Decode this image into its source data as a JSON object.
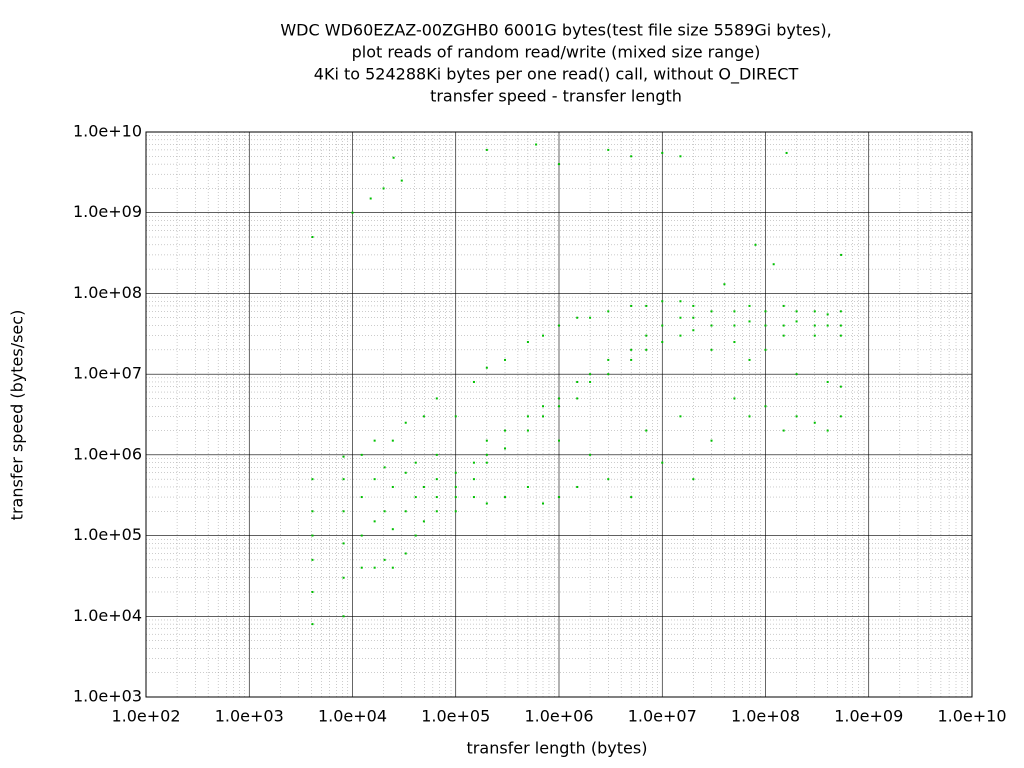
{
  "chart_data": {
    "type": "scatter",
    "title": [
      "WDC WD60EZAZ-00ZGHB0 6001G bytes(test file size 5589Gi bytes),",
      "plot reads of random read/write (mixed size range)",
      "4Ki to 524288Ki bytes per one read() call, without O_DIRECT",
      "transfer speed - transfer length"
    ],
    "x_label": "transfer length (bytes)",
    "y_label": "transfer speed (bytes/sec)",
    "xlog": true,
    "ylog": true,
    "grid": true,
    "minor_grid": true,
    "color": "#00c000",
    "xlim": [
      100,
      10000000000
    ],
    "ylim": [
      1000,
      10000000000
    ],
    "xticks": [
      {
        "value": 100,
        "label": "1.0e+02"
      },
      {
        "value": 1000,
        "label": "1.0e+03"
      },
      {
        "value": 10000,
        "label": "1.0e+04"
      },
      {
        "value": 100000,
        "label": "1.0e+05"
      },
      {
        "value": 1000000,
        "label": "1.0e+06"
      },
      {
        "value": 10000000,
        "label": "1.0e+07"
      },
      {
        "value": 100000000,
        "label": "1.0e+08"
      },
      {
        "value": 1000000000,
        "label": "1.0e+09"
      },
      {
        "value": 10000000000,
        "label": "1.0e+10"
      }
    ],
    "yticks": [
      {
        "value": 1000,
        "label": "1.0e+03"
      },
      {
        "value": 10000,
        "label": "1.0e+04"
      },
      {
        "value": 100000,
        "label": "1.0e+05"
      },
      {
        "value": 1000000,
        "label": "1.0e+06"
      },
      {
        "value": 10000000,
        "label": "1.0e+07"
      },
      {
        "value": 100000000,
        "label": "1.0e+08"
      },
      {
        "value": 1000000000,
        "label": "1.0e+09"
      },
      {
        "value": 10000000000,
        "label": "1.0e+10"
      }
    ],
    "x": [
      4096,
      4096,
      4096,
      4096,
      4096,
      4096,
      8192,
      8192,
      8192,
      8192,
      8192,
      8192,
      12288,
      12288,
      12288,
      12288,
      16384,
      16384,
      16384,
      16384,
      20480,
      20480,
      20480,
      24576,
      24576,
      24576,
      24576,
      32768,
      32768,
      32768,
      32768,
      40960,
      40960,
      40960,
      49152,
      49152,
      49152,
      65536,
      65536,
      65536,
      65536,
      65536,
      100000,
      100000,
      100000,
      100000,
      100000,
      150000,
      150000,
      150000,
      150000,
      200000,
      200000,
      200000,
      200000,
      200000,
      300000,
      300000,
      300000,
      300000,
      500000,
      500000,
      500000,
      500000,
      700000,
      700000,
      700000,
      700000,
      1000000,
      1000000,
      1000000,
      1000000,
      1000000,
      1500000,
      1500000,
      1500000,
      1500000,
      2000000,
      2000000,
      2000000,
      2000000,
      3000000,
      3000000,
      3000000,
      3000000,
      5000000,
      5000000,
      5000000,
      5000000,
      7000000,
      7000000,
      7000000,
      7000000,
      10000000,
      10000000,
      10000000,
      10000000,
      15000000,
      15000000,
      15000000,
      15000000,
      20000000,
      20000000,
      20000000,
      20000000,
      30000000,
      30000000,
      30000000,
      30000000,
      50000000,
      50000000,
      50000000,
      50000000,
      70000000,
      70000000,
      70000000,
      70000000,
      100000000,
      100000000,
      100000000,
      100000000,
      150000000,
      150000000,
      150000000,
      150000000,
      200000000,
      200000000,
      200000000,
      200000000,
      300000000,
      300000000,
      300000000,
      300000000,
      400000000,
      400000000,
      400000000,
      400000000,
      536870912,
      536870912,
      536870912,
      536870912,
      536870912,
      10000,
      4096,
      15000,
      20000,
      25000,
      30000,
      200000,
      600000,
      1000000,
      3000000,
      5000000,
      10000000,
      15000000,
      160000000,
      80000000,
      120000000,
      540000000,
      40000000
    ],
    "values": [
      8000,
      20000,
      50000,
      100000,
      200000,
      500000,
      10000,
      30000,
      80000,
      200000,
      500000,
      950000,
      40000,
      100000,
      300000,
      1000000,
      40000,
      150000,
      500000,
      1500000,
      50000,
      200000,
      700000,
      40000,
      120000,
      400000,
      1500000,
      60000,
      200000,
      600000,
      2500000,
      100000,
      300000,
      800000,
      150000,
      400000,
      3000000,
      200000,
      300000,
      500000,
      1000000,
      5000000,
      300000,
      400000,
      600000,
      3000000,
      200000,
      500000,
      800000,
      8000000,
      300000,
      800000,
      1000000,
      1500000,
      12000000,
      250000,
      1200000,
      2000000,
      15000000,
      300000,
      2000000,
      3000000,
      25000000,
      400000,
      3000000,
      4000000,
      30000000,
      250000,
      4000000,
      5000000,
      40000000,
      300000,
      1500000,
      5000000,
      8000000,
      50000000,
      400000,
      8000000,
      10000000,
      50000000,
      1000000,
      10000000,
      15000000,
      60000000,
      500000,
      15000000,
      20000000,
      70000000,
      300000,
      20000000,
      30000000,
      70000000,
      2000000,
      25000000,
      40000000,
      80000000,
      800000,
      30000000,
      50000000,
      80000000,
      3000000,
      35000000,
      50000000,
      70000000,
      500000,
      40000000,
      60000000,
      20000000,
      1500000,
      40000000,
      60000000,
      25000000,
      5000000,
      45000000,
      70000000,
      15000000,
      3000000,
      40000000,
      60000000,
      20000000,
      4000000,
      40000000,
      70000000,
      30000000,
      2000000,
      45000000,
      60000000,
      10000000,
      3000000,
      40000000,
      60000000,
      30000000,
      2500000,
      40000000,
      55000000,
      8000000,
      2000000,
      30000000,
      40000000,
      60000000,
      7000000,
      3000000,
      1000000000,
      500000000,
      1500000000,
      2000000000,
      4800000000,
      2500000000,
      6000000000,
      7000000000,
      4000000000,
      6000000000,
      5000000000,
      5500000000,
      5000000000,
      5500000000,
      400000000,
      230000000,
      300000000,
      130000000
    ]
  }
}
